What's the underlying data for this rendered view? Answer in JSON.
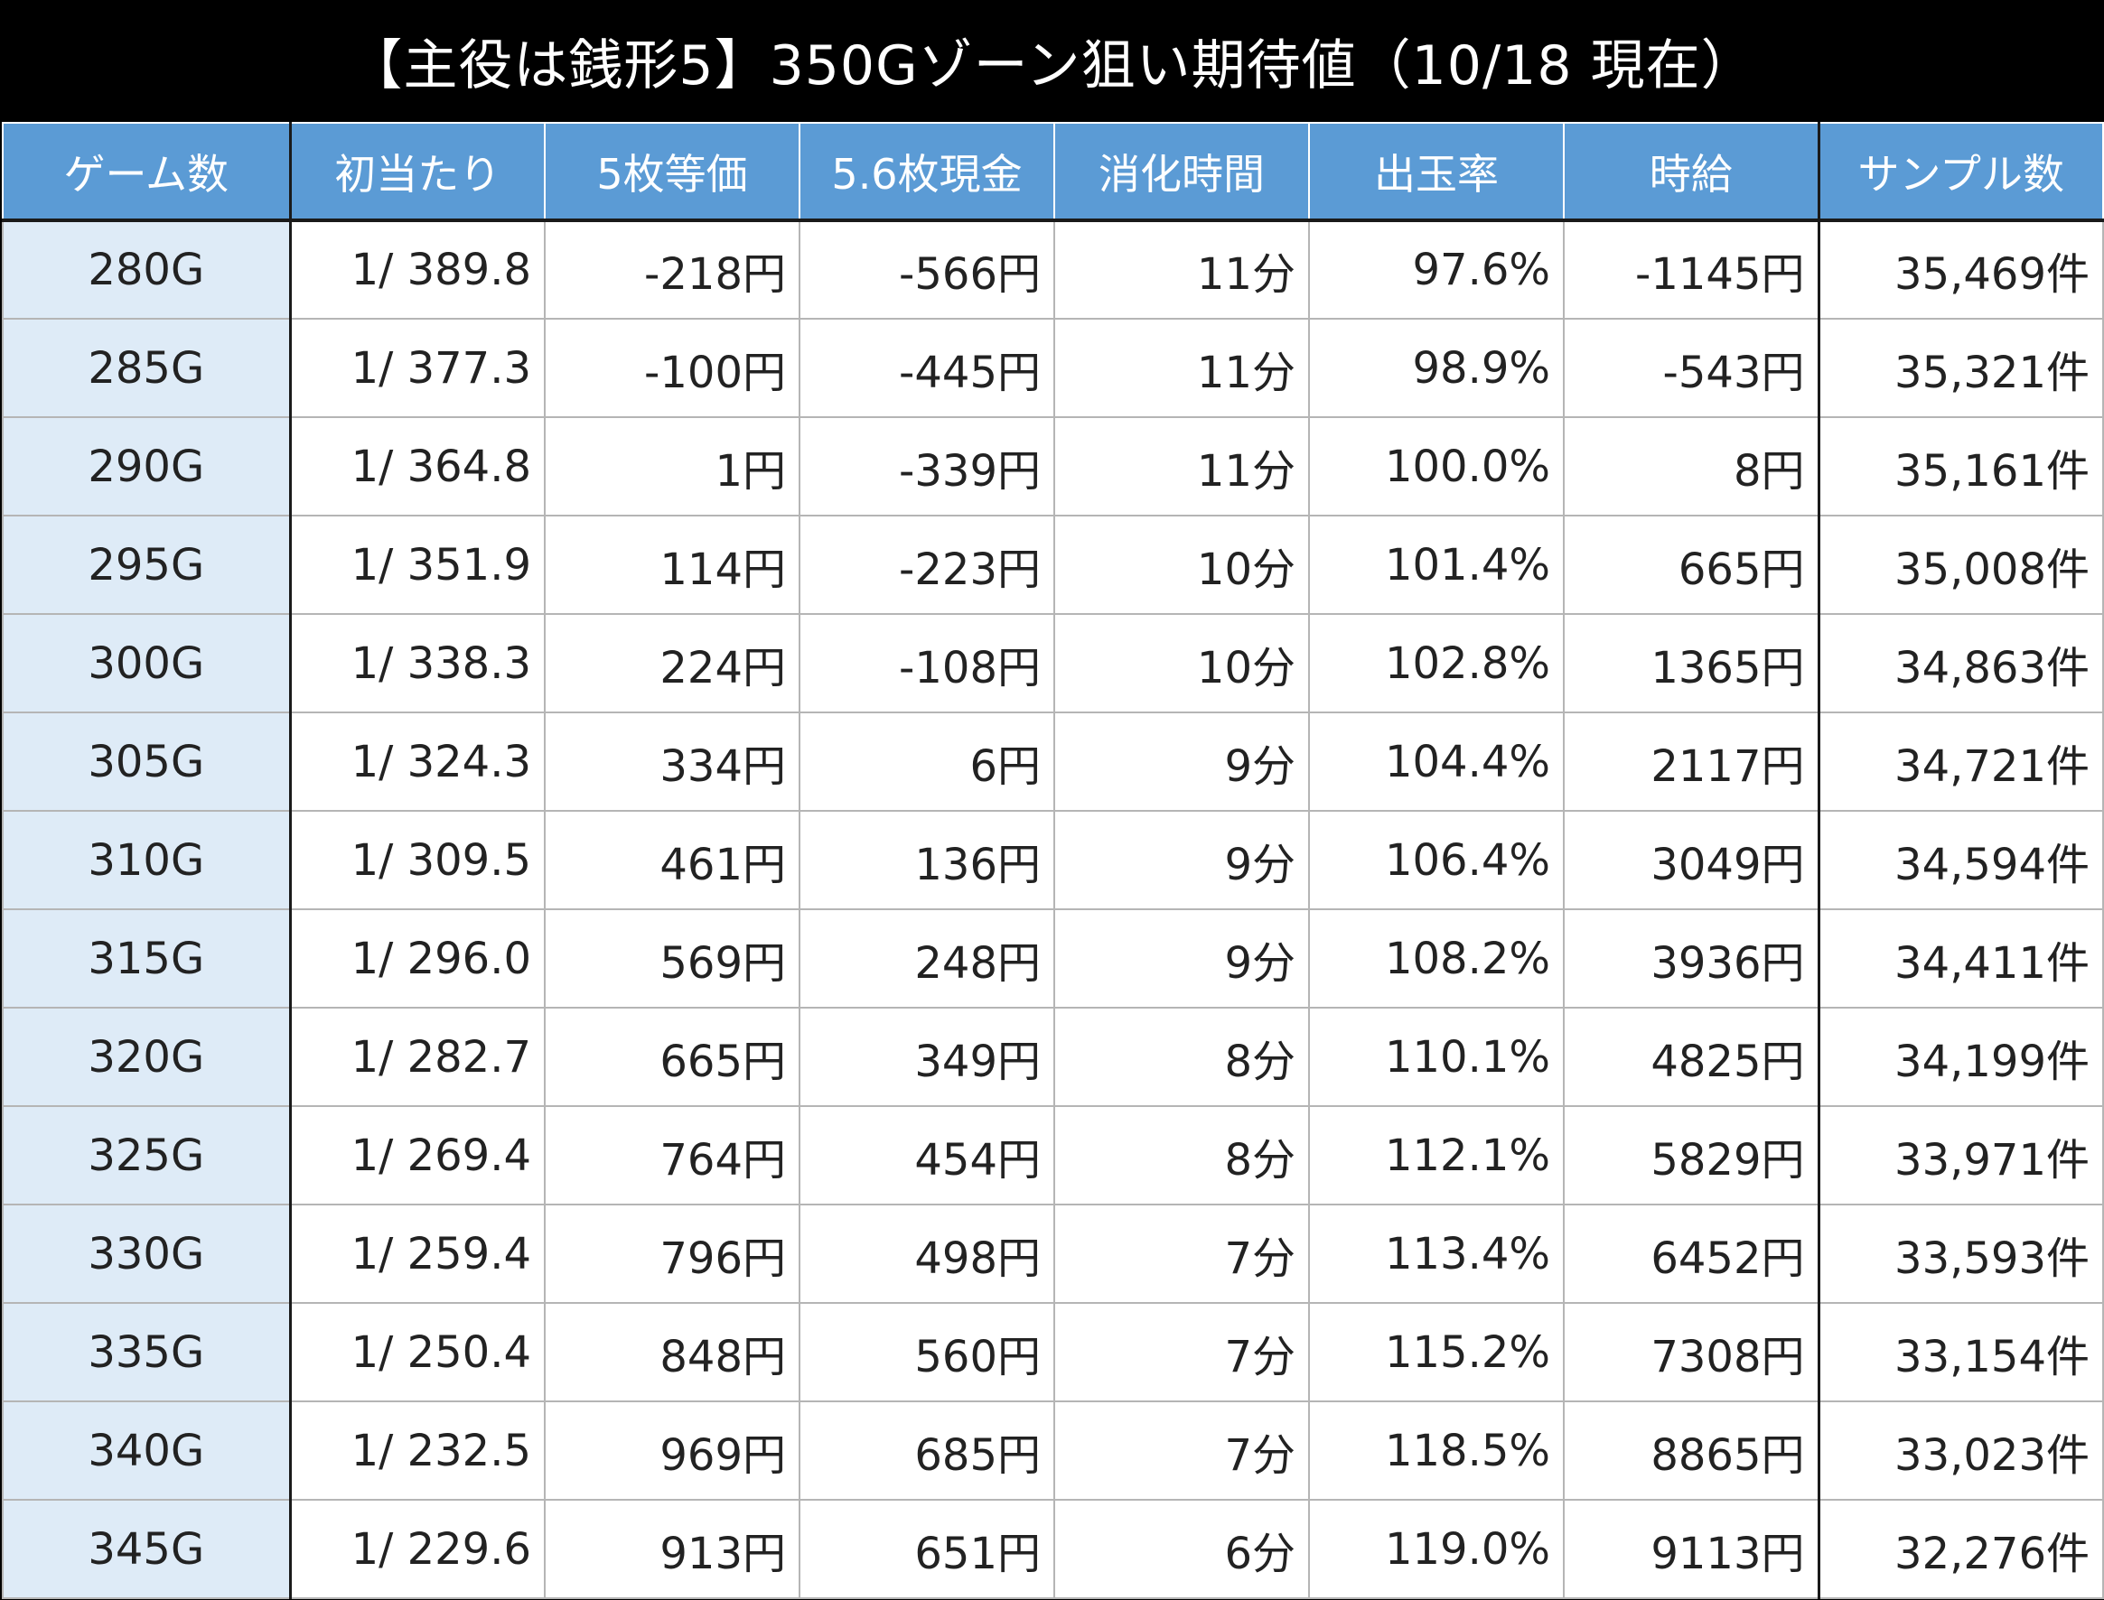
{
  "title": "【主役は銭形5】350Gゾーン狙い期待値（10/18 現在）",
  "headers": [
    "ゲーム数",
    "初当たり",
    "5枚等価",
    "5.6枚現金",
    "消化時間",
    "出玉率",
    "時給",
    "サンプル数"
  ],
  "colors": {
    "negative": "#ee0000",
    "positive": "#1a1ae6",
    "header_bg": "#5b9bd5",
    "game_col_bg": "#deebf7"
  },
  "rows": [
    [
      "280G",
      "1/ 389.8",
      "-218円",
      "-566円",
      "11分",
      "97.6%",
      "-1145円",
      "35,469件"
    ],
    [
      "285G",
      "1/ 377.3",
      "-100円",
      "-445円",
      "11分",
      "98.9%",
      "-543円",
      "35,321件"
    ],
    [
      "290G",
      "1/ 364.8",
      "1円",
      "-339円",
      "11分",
      "100.0%",
      "8円",
      "35,161件"
    ],
    [
      "295G",
      "1/ 351.9",
      "114円",
      "-223円",
      "10分",
      "101.4%",
      "665円",
      "35,008件"
    ],
    [
      "300G",
      "1/ 338.3",
      "224円",
      "-108円",
      "10分",
      "102.8%",
      "1365円",
      "34,863件"
    ],
    [
      "305G",
      "1/ 324.3",
      "334円",
      "6円",
      "9分",
      "104.4%",
      "2117円",
      "34,721件"
    ],
    [
      "310G",
      "1/ 309.5",
      "461円",
      "136円",
      "9分",
      "106.4%",
      "3049円",
      "34,594件"
    ],
    [
      "315G",
      "1/ 296.0",
      "569円",
      "248円",
      "9分",
      "108.2%",
      "3936円",
      "34,411件"
    ],
    [
      "320G",
      "1/ 282.7",
      "665円",
      "349円",
      "8分",
      "110.1%",
      "4825円",
      "34,199件"
    ],
    [
      "325G",
      "1/ 269.4",
      "764円",
      "454円",
      "8分",
      "112.1%",
      "5829円",
      "33,971件"
    ],
    [
      "330G",
      "1/ 259.4",
      "796円",
      "498円",
      "7分",
      "113.4%",
      "6452円",
      "33,593件"
    ],
    [
      "335G",
      "1/ 250.4",
      "848円",
      "560円",
      "7分",
      "115.2%",
      "7308円",
      "33,154件"
    ],
    [
      "340G",
      "1/ 232.5",
      "969円",
      "685円",
      "7分",
      "118.5%",
      "8865円",
      "33,023件"
    ],
    [
      "345G",
      "1/ 229.6",
      "913円",
      "651円",
      "6分",
      "119.0%",
      "9113円",
      "32,276件"
    ]
  ]
}
